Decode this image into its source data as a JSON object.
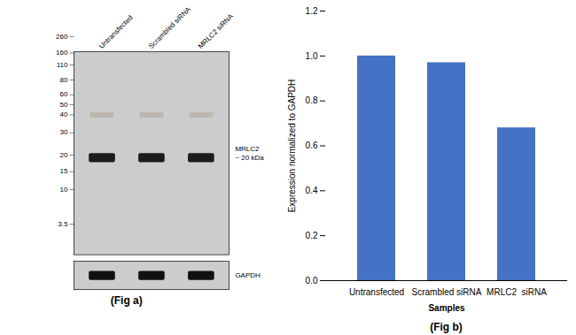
{
  "chart_data": [
    {
      "type": "western_blot",
      "categories": [
        "Untransfected",
        "Scrambled siRNA",
        "MRLC2 siRNA"
      ],
      "yticks": [
        260,
        160,
        110,
        80,
        60,
        50,
        40,
        30,
        20,
        15,
        10,
        3.5
      ],
      "annotations": [
        "MRLC2\n~ 20 kDa",
        "GAPDH",
        "(Fig a)"
      ]
    },
    {
      "type": "bar",
      "categories": [
        "Untransfected",
        "Scrambled siRNA",
        "MRLC2  siRNA"
      ],
      "values": [
        1.0,
        0.97,
        0.68
      ],
      "color": "#4472C4",
      "xlabel": "Samples",
      "ylabel": "Expression normalized to GAPDH",
      "ylim": [
        0,
        1.2
      ],
      "yticks": [
        {
          "value": 0,
          "label": "0.0"
        },
        0.2,
        0.4,
        0.6,
        0.8,
        {
          "value": 1.0,
          "label": "1.0"
        },
        1.2
      ],
      "grid": false,
      "annotations": [
        "(Fig b)"
      ]
    }
  ]
}
